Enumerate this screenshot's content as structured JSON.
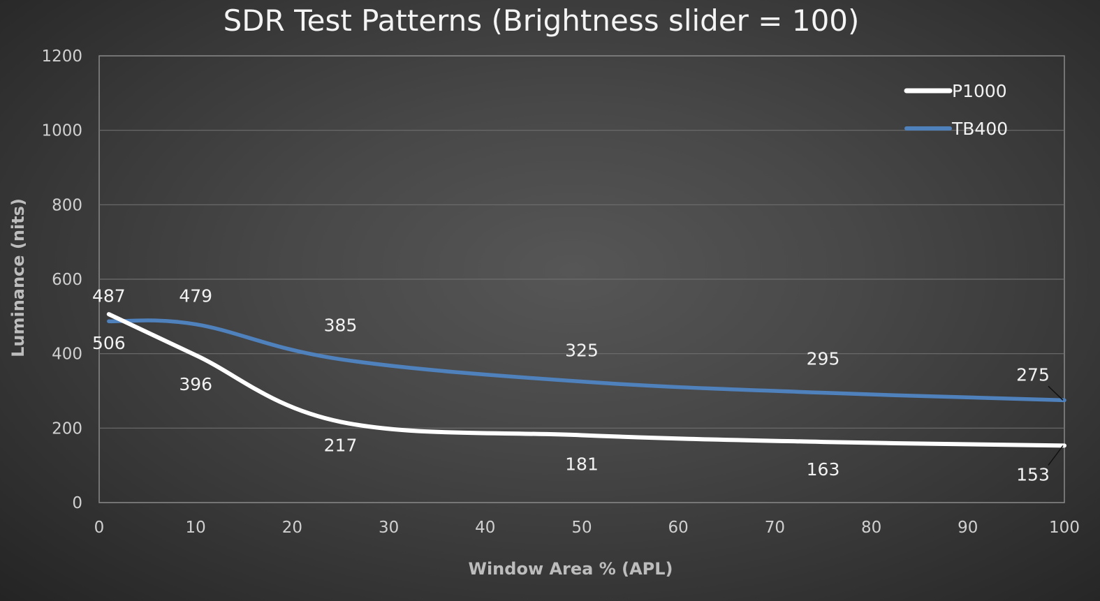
{
  "chart_data": {
    "type": "line",
    "title": "SDR Test Patterns (Brightness slider = 100)",
    "xlabel": "Window Area % (APL)",
    "ylabel": "Luminance (nits)",
    "xlim": [
      0,
      100
    ],
    "ylim": [
      0,
      1200
    ],
    "x_ticks": [
      "0",
      "10",
      "20",
      "30",
      "40",
      "50",
      "60",
      "70",
      "80",
      "90",
      "100"
    ],
    "y_ticks": [
      "0",
      "200",
      "400",
      "600",
      "800",
      "1000",
      "1200"
    ],
    "grid": true,
    "legend_position": "top-right",
    "series": [
      {
        "name": "P1000",
        "color": "#ffffff",
        "x": [
          1,
          10,
          25,
          50,
          75,
          100
        ],
        "values": [
          506,
          396,
          217,
          181,
          163,
          153
        ],
        "labels": [
          "506",
          "396",
          "217",
          "181",
          "163",
          "153"
        ]
      },
      {
        "name": "TB400",
        "color": "#4f81bd",
        "x": [
          1,
          10,
          25,
          50,
          75,
          100
        ],
        "values": [
          487,
          479,
          385,
          325,
          295,
          275
        ],
        "labels": [
          "487",
          "479",
          "385",
          "325",
          "295",
          "275"
        ]
      }
    ]
  }
}
